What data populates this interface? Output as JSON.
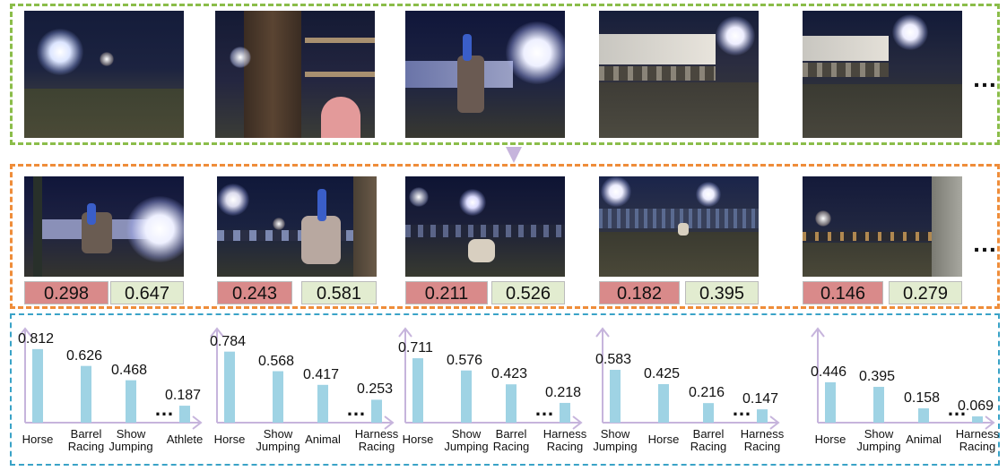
{
  "ellipsis": "…",
  "frames_row1": [
    {
      "name": "frame-1",
      "icon": "night-arena-icon"
    },
    {
      "name": "frame-2",
      "icon": "night-arena-icon"
    },
    {
      "name": "frame-3",
      "icon": "night-arena-icon"
    },
    {
      "name": "frame-4",
      "icon": "night-arena-icon"
    },
    {
      "name": "frame-5",
      "icon": "night-arena-icon"
    }
  ],
  "frames_row2": [
    {
      "red": "0.298",
      "green": "0.647"
    },
    {
      "red": "0.243",
      "green": "0.581"
    },
    {
      "red": "0.211",
      "green": "0.526"
    },
    {
      "red": "0.182",
      "green": "0.395"
    },
    {
      "red": "0.146",
      "green": "0.279"
    }
  ],
  "colors": {
    "bar": "#9fd3e4",
    "axis": "#c6b4dc",
    "red_score": "#d98a8a",
    "green_score": "#e2ecd0"
  },
  "chart_data": [
    {
      "type": "bar",
      "categories": [
        "Horse",
        "Barrel Racing",
        "Show Jumping",
        "Athlete"
      ],
      "values": [
        0.812,
        0.626,
        0.468,
        0.187
      ],
      "value_labels": [
        "0.812",
        "0.626",
        "0.468",
        "0.187"
      ],
      "ellipsis_before_last": true
    },
    {
      "type": "bar",
      "categories": [
        "Horse",
        "Show Jumping",
        "Animal",
        "Harness Racing"
      ],
      "values": [
        0.784,
        0.568,
        0.417,
        0.253
      ],
      "value_labels": [
        "0.784",
        "0.568",
        "0.417",
        "0.253"
      ],
      "ellipsis_before_last": true
    },
    {
      "type": "bar",
      "categories": [
        "Horse",
        "Show Jumping",
        "Barrel Racing",
        "Harness Racing"
      ],
      "values": [
        0.711,
        0.576,
        0.423,
        0.218
      ],
      "value_labels": [
        "0.711",
        "0.576",
        "0.423",
        "0.218"
      ],
      "ellipsis_before_last": true
    },
    {
      "type": "bar",
      "categories": [
        "Show Jumping",
        "Horse",
        "Barrel Racing",
        "Harness Racing"
      ],
      "values": [
        0.583,
        0.425,
        0.216,
        0.147
      ],
      "value_labels": [
        "0.583",
        "0.425",
        "0.216",
        "0.147"
      ],
      "ellipsis_before_last": true
    },
    {
      "type": "bar",
      "categories": [
        "Horse",
        "Show Jumping",
        "Animal",
        "Harness Racing"
      ],
      "values": [
        0.446,
        0.395,
        0.158,
        0.069
      ],
      "value_labels": [
        "0.446",
        "0.395",
        "0.158",
        "0.069"
      ],
      "ellipsis_before_last": true
    }
  ]
}
